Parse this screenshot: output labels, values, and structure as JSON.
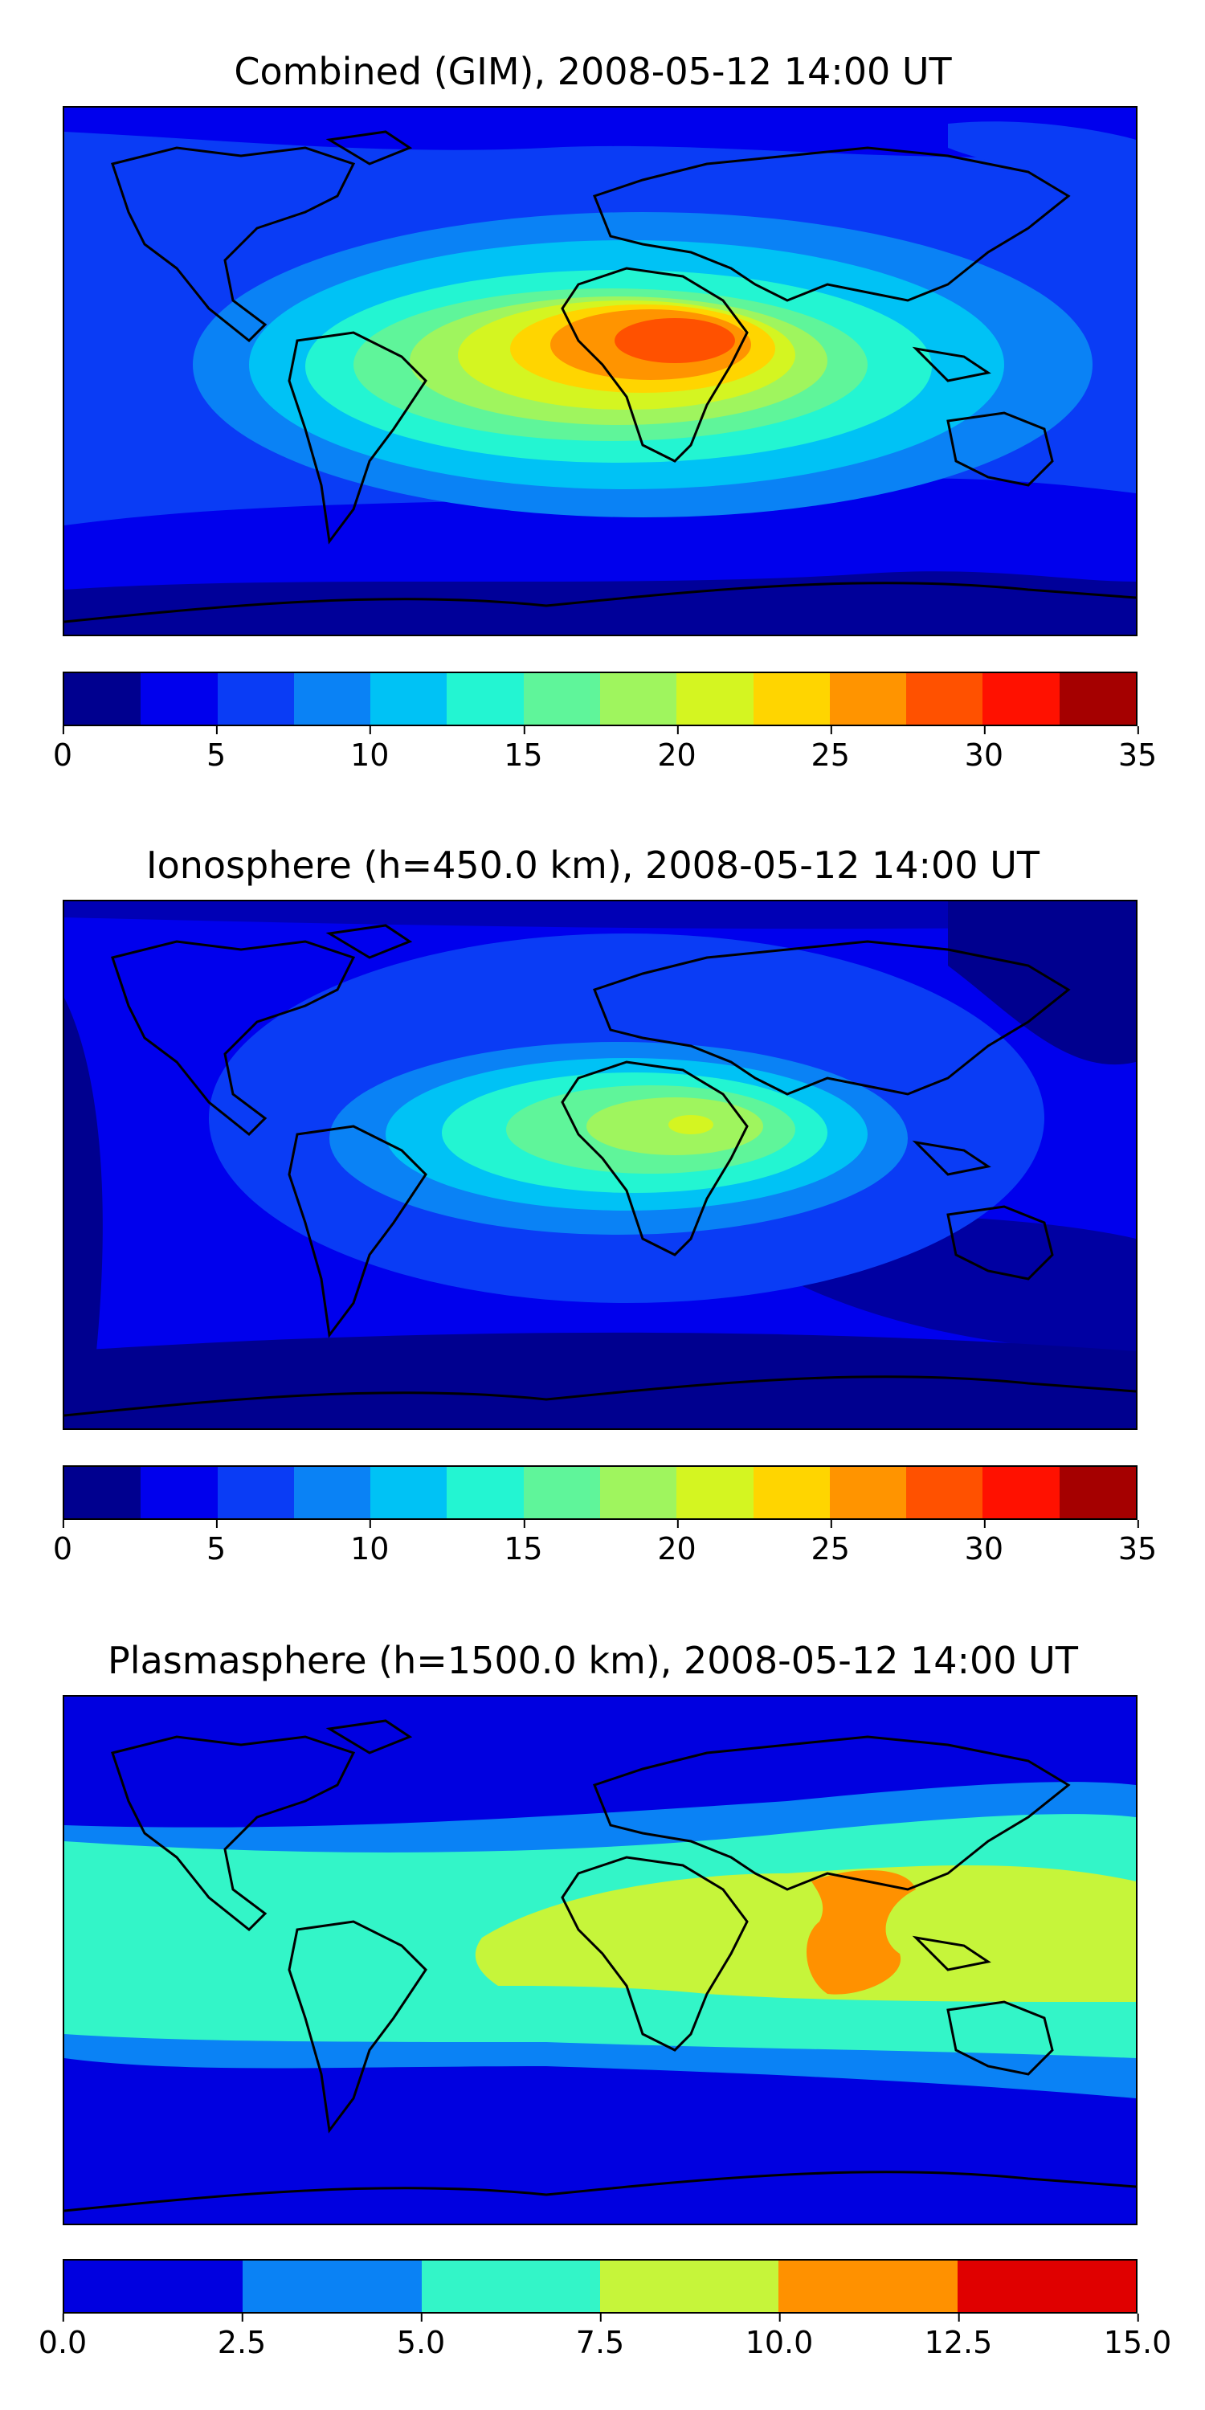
{
  "panels": [
    {
      "title": "Combined (GIM), 2008-05-12 14:00 UT",
      "colorbar": {
        "colors": [
          "#00008f",
          "#0000ed",
          "#0a3cf5",
          "#0a82f5",
          "#00c2f5",
          "#23f5d2",
          "#5ff59a",
          "#9ff55e",
          "#d4f521",
          "#ffd500",
          "#ff9400",
          "#ff5100",
          "#ff1100",
          "#a50000"
        ],
        "ticks": [
          "0",
          "5",
          "10",
          "15",
          "20",
          "25",
          "30",
          "35"
        ]
      }
    },
    {
      "title": "Ionosphere  (h=450.0 km), 2008-05-12 14:00 UT",
      "colorbar": {
        "colors": [
          "#00008f",
          "#0000ed",
          "#0a3cf5",
          "#0a82f5",
          "#00c2f5",
          "#23f5d2",
          "#5ff59a",
          "#9ff55e",
          "#d4f521",
          "#ffd500",
          "#ff9400",
          "#ff5100",
          "#ff1100",
          "#a50000"
        ],
        "ticks": [
          "0",
          "5",
          "10",
          "15",
          "20",
          "25",
          "30",
          "35"
        ]
      }
    },
    {
      "title": "Plasmasphere (h=1500.0 km), 2008-05-12 14:00 UT",
      "colorbar": {
        "colors": [
          "#0000e0",
          "#0a82f5",
          "#33f5c8",
          "#c6f53a",
          "#ff9100",
          "#e00000"
        ],
        "ticks": [
          "0.0",
          "2.5",
          "5.0",
          "7.5",
          "10.0",
          "12.5",
          "15.0"
        ]
      }
    }
  ]
}
